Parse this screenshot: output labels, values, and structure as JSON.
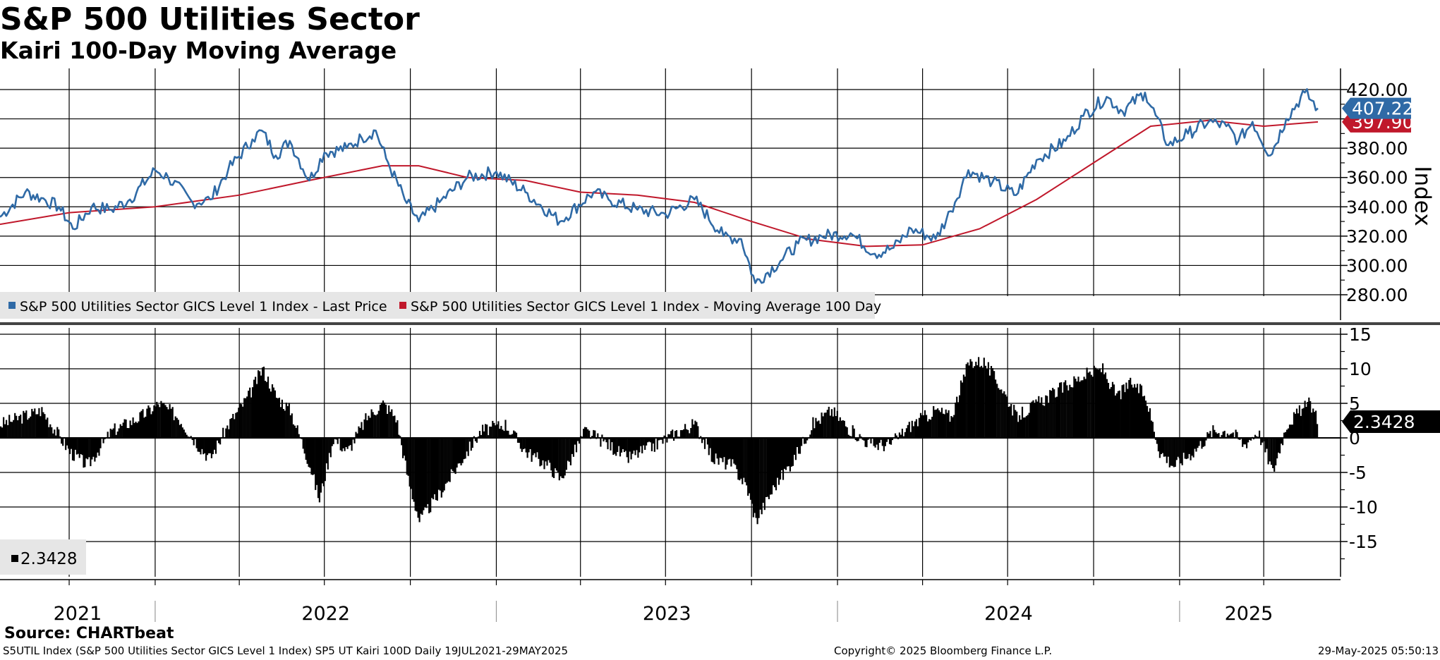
{
  "title": "S&P 500 Utilities Sector",
  "subtitle": "Kairi 100-Day Moving Average",
  "source": "Source: CHARTbeat",
  "footer": {
    "left": "S5UTIL Index (S&P 500 Utilities Sector GICS Level 1 Index) SP5 UT Kairi 100D  Daily 19JUL2021-29MAY2025",
    "center": "Copyright© 2025 Bloomberg Finance L.P.",
    "right": "29-May-2025 05:50:13"
  },
  "colors": {
    "price": "#2f6aa6",
    "moving_average": "#c0182b",
    "kairi": "#000000",
    "grid": "#000000"
  },
  "chart_data": [
    {
      "type": "line",
      "ylabel": "Index",
      "ylim": [
        265,
        430
      ],
      "yticks": [
        "420.00",
        "400.00",
        "380.00",
        "360.00",
        "340.00",
        "320.00",
        "300.00",
        "280.00"
      ],
      "xlim": [
        "2021-07-19",
        "2025-05-29"
      ],
      "x_tick_labels": [
        "2021",
        "2022",
        "2023",
        "2024",
        "2025"
      ],
      "legend": [
        "S&P 500 Utilities Sector GICS Level 1 Index - Last Price",
        "S&P 500 Utilities Sector GICS Level 1 Index - Moving Average 100 Day"
      ],
      "last_values": {
        "price": "407.22",
        "moving_average": "397.90"
      },
      "series": [
        {
          "name": "S&P 500 Utilities Sector GICS Level 1 Index - Last Price",
          "color": "#2f6aa6",
          "points": [
            [
              "2021-07-19",
              333
            ],
            [
              "2021-08-15",
              350
            ],
            [
              "2021-09-01",
              346
            ],
            [
              "2021-09-20",
              340
            ],
            [
              "2021-10-05",
              325
            ],
            [
              "2021-10-25",
              340
            ],
            [
              "2021-11-15",
              338
            ],
            [
              "2021-12-05",
              345
            ],
            [
              "2022-01-01",
              365
            ],
            [
              "2022-01-15",
              360
            ],
            [
              "2022-02-10",
              343
            ],
            [
              "2022-03-01",
              345
            ],
            [
              "2022-03-20",
              365
            ],
            [
              "2022-04-15",
              386
            ],
            [
              "2022-04-25",
              392
            ],
            [
              "2022-05-10",
              375
            ],
            [
              "2022-05-25",
              385
            ],
            [
              "2022-06-15",
              358
            ],
            [
              "2022-07-01",
              377
            ],
            [
              "2022-07-25",
              380
            ],
            [
              "2022-08-10",
              387
            ],
            [
              "2022-08-25",
              392
            ],
            [
              "2022-09-05",
              373
            ],
            [
              "2022-09-25",
              345
            ],
            [
              "2022-10-10",
              330
            ],
            [
              "2022-11-01",
              343
            ],
            [
              "2022-12-01",
              360
            ],
            [
              "2023-01-01",
              364
            ],
            [
              "2023-02-01",
              350
            ],
            [
              "2023-03-10",
              330
            ],
            [
              "2023-04-15",
              350
            ],
            [
              "2023-05-01",
              345
            ],
            [
              "2023-06-01",
              338
            ],
            [
              "2023-07-01",
              335
            ],
            [
              "2023-08-01",
              345
            ],
            [
              "2023-09-01",
              320
            ],
            [
              "2023-09-20",
              318
            ],
            [
              "2023-10-05",
              288
            ],
            [
              "2023-11-01",
              303
            ],
            [
              "2023-11-20",
              315
            ],
            [
              "2023-12-15",
              320
            ],
            [
              "2024-01-15",
              322
            ],
            [
              "2024-02-10",
              308
            ],
            [
              "2024-03-01",
              312
            ],
            [
              "2024-03-20",
              325
            ],
            [
              "2024-04-15",
              318
            ],
            [
              "2024-05-01",
              337
            ],
            [
              "2024-05-20",
              365
            ],
            [
              "2024-06-15",
              357
            ],
            [
              "2024-07-10",
              348
            ],
            [
              "2024-08-01",
              372
            ],
            [
              "2024-09-01",
              385
            ],
            [
              "2024-09-20",
              402
            ],
            [
              "2024-10-15",
              415
            ],
            [
              "2024-11-01",
              405
            ],
            [
              "2024-11-25",
              418
            ],
            [
              "2024-12-20",
              382
            ],
            [
              "2025-01-10",
              390
            ],
            [
              "2025-02-01",
              398
            ],
            [
              "2025-02-20",
              395
            ],
            [
              "2025-03-05",
              385
            ],
            [
              "2025-03-20",
              398
            ],
            [
              "2025-04-08",
              375
            ],
            [
              "2025-04-25",
              400
            ],
            [
              "2025-05-15",
              418
            ],
            [
              "2025-05-29",
              407.22
            ]
          ]
        },
        {
          "name": "S&P 500 Utilities Sector GICS Level 1 Index - Moving Average 100 Day",
          "color": "#c0182b",
          "points": [
            [
              "2021-07-19",
              328
            ],
            [
              "2021-10-01",
              336
            ],
            [
              "2022-01-01",
              340
            ],
            [
              "2022-04-01",
              348
            ],
            [
              "2022-06-15",
              358
            ],
            [
              "2022-09-01",
              368
            ],
            [
              "2022-10-10",
              368
            ],
            [
              "2022-12-01",
              360
            ],
            [
              "2023-02-01",
              358
            ],
            [
              "2023-04-01",
              350
            ],
            [
              "2023-06-01",
              348
            ],
            [
              "2023-08-01",
              343
            ],
            [
              "2023-10-01",
              330
            ],
            [
              "2023-12-01",
              318
            ],
            [
              "2024-02-01",
              313
            ],
            [
              "2024-04-01",
              314
            ],
            [
              "2024-06-01",
              325
            ],
            [
              "2024-08-01",
              345
            ],
            [
              "2024-10-01",
              370
            ],
            [
              "2024-12-01",
              395
            ],
            [
              "2025-02-01",
              399
            ],
            [
              "2025-04-01",
              395
            ],
            [
              "2025-05-29",
              397.9
            ]
          ]
        }
      ]
    },
    {
      "type": "bar",
      "ylim": [
        -20,
        16
      ],
      "yticks": [
        "15",
        "10",
        "5",
        "0",
        "-5",
        "-10",
        "-15"
      ],
      "xlim": [
        "2021-07-19",
        "2025-05-29"
      ],
      "legend": [
        "2.3428"
      ],
      "last_value": "2.3428",
      "series": [
        {
          "name": "2.3428",
          "color": "#000000",
          "points": [
            [
              "2021-07-19",
              2
            ],
            [
              "2021-09-01",
              4
            ],
            [
              "2021-10-01",
              -2
            ],
            [
              "2021-10-20",
              -4
            ],
            [
              "2021-11-15",
              1
            ],
            [
              "2021-12-15",
              3
            ],
            [
              "2022-01-05",
              5
            ],
            [
              "2022-01-25",
              3
            ],
            [
              "2022-02-15",
              -1
            ],
            [
              "2022-02-28",
              -3
            ],
            [
              "2022-03-20",
              2
            ],
            [
              "2022-04-10",
              6
            ],
            [
              "2022-04-25",
              10
            ],
            [
              "2022-05-10",
              6
            ],
            [
              "2022-05-25",
              4
            ],
            [
              "2022-06-15",
              -4
            ],
            [
              "2022-06-25",
              -9
            ],
            [
              "2022-07-10",
              0
            ],
            [
              "2022-07-25",
              -2
            ],
            [
              "2022-08-15",
              3
            ],
            [
              "2022-09-01",
              5
            ],
            [
              "2022-09-15",
              3
            ],
            [
              "2022-09-28",
              -6
            ],
            [
              "2022-10-10",
              -12
            ],
            [
              "2022-11-01",
              -8
            ],
            [
              "2022-11-25",
              -3
            ],
            [
              "2022-12-15",
              1
            ],
            [
              "2023-01-10",
              2
            ],
            [
              "2023-02-01",
              -2
            ],
            [
              "2023-02-25",
              -4
            ],
            [
              "2023-03-10",
              -6
            ],
            [
              "2023-04-05",
              1
            ],
            [
              "2023-05-01",
              -1
            ],
            [
              "2023-05-20",
              -3
            ],
            [
              "2023-06-20",
              -1
            ],
            [
              "2023-07-15",
              1
            ],
            [
              "2023-08-01",
              2
            ],
            [
              "2023-08-20",
              -3
            ],
            [
              "2023-09-10",
              -4
            ],
            [
              "2023-09-25",
              -7
            ],
            [
              "2023-10-05",
              -12
            ],
            [
              "2023-10-25",
              -7
            ],
            [
              "2023-11-15",
              -3
            ],
            [
              "2023-12-05",
              2
            ],
            [
              "2023-12-25",
              4
            ],
            [
              "2024-01-15",
              1
            ],
            [
              "2024-02-05",
              -1
            ],
            [
              "2024-02-25",
              -1
            ],
            [
              "2024-03-20",
              2
            ],
            [
              "2024-04-15",
              4
            ],
            [
              "2024-05-01",
              3
            ],
            [
              "2024-05-20",
              11
            ],
            [
              "2024-06-05",
              11
            ],
            [
              "2024-06-25",
              7
            ],
            [
              "2024-07-10",
              3
            ],
            [
              "2024-08-01",
              5
            ],
            [
              "2024-08-25",
              7
            ],
            [
              "2024-09-20",
              9
            ],
            [
              "2024-10-10",
              10
            ],
            [
              "2024-10-25",
              6
            ],
            [
              "2024-11-10",
              8
            ],
            [
              "2024-11-25",
              6
            ],
            [
              "2024-12-10",
              -2
            ],
            [
              "2024-12-25",
              -4
            ],
            [
              "2025-01-15",
              -2
            ],
            [
              "2025-02-05",
              1
            ],
            [
              "2025-02-25",
              1
            ],
            [
              "2025-03-10",
              -1
            ],
            [
              "2025-03-25",
              1
            ],
            [
              "2025-04-05",
              -3
            ],
            [
              "2025-04-10",
              -5
            ],
            [
              "2025-04-25",
              2
            ],
            [
              "2025-05-10",
              4
            ],
            [
              "2025-05-20",
              5
            ],
            [
              "2025-05-29",
              2.3428
            ]
          ]
        }
      ]
    }
  ]
}
